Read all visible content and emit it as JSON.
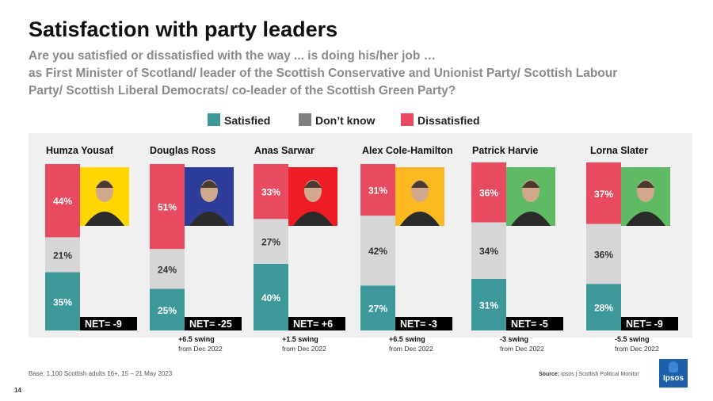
{
  "title": "Satisfaction with party leaders",
  "subtitle": {
    "line1": "Are you satisfied or dissatisfied with the way ... is doing his/her job …",
    "line2": "as First Minister of Scotland/ leader of the Scottish Conservative and Unionist Party/ Scottish Labour",
    "line3": "Party/ Scottish Liberal Democrats/ co-leader of the Scottish Green Party?"
  },
  "colors": {
    "satisfied": "#3d9999",
    "dont_know": "#d6d6d6",
    "dissatisfied": "#e84a5f",
    "net_box": "#000000",
    "panel": "#f0f0f0"
  },
  "footer": {
    "base": "Base: 1,100 Scottish adults 16+, 15 – 21 May 2023",
    "source_label": "Source:",
    "source_text": "Ipsos | Scottish Political Monitor",
    "page_number": "14",
    "logo_text": "Ipsos"
  },
  "chart_data": {
    "type": "bar",
    "stacked": true,
    "unit": "%",
    "legend_position": "top",
    "grid": false,
    "categories": [
      "Humza Yousaf",
      "Douglas Ross",
      "Anas Sarwar",
      "Alex Cole-Hamilton",
      "Patrick Harvie",
      "Lorna Slater"
    ],
    "series": [
      {
        "name": "Satisfied",
        "color": "#3d9999",
        "values": [
          35,
          25,
          40,
          27,
          31,
          28
        ]
      },
      {
        "name": "Don’t know",
        "color": "#d6d6d6",
        "values": [
          21,
          24,
          27,
          42,
          34,
          36
        ]
      },
      {
        "name": "Dissatisfied",
        "color": "#e84a5f",
        "values": [
          44,
          51,
          33,
          31,
          36,
          37
        ]
      }
    ],
    "net_labels": [
      "NET= -9",
      "NET= -25",
      "NET= +6",
      "NET= -3",
      "NET= -5",
      "NET= -9"
    ],
    "swing_values": [
      null,
      "+6.5 swing",
      "+1.5 swing",
      "+6.5 swing",
      "-3 swing",
      "-5.5 swing"
    ],
    "swing_note": "from Dec 2022",
    "photo_backgrounds": [
      "#ffd600",
      "#2e3d99",
      "#ee1c24",
      "#fbb820",
      "#5fbb63",
      "#5fbb63"
    ]
  }
}
